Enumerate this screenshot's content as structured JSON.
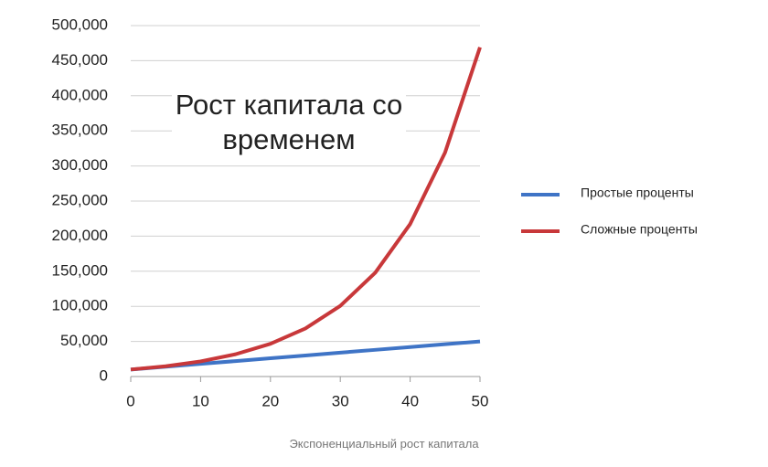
{
  "chart_data": {
    "type": "line",
    "title": "Рост капитала со временем",
    "caption": "Экспоненциальный рост капитала",
    "x": [
      0,
      5,
      10,
      15,
      20,
      25,
      30,
      35,
      40,
      45,
      50
    ],
    "series": [
      {
        "name": "Простые проценты",
        "color": "#3f74c6",
        "values": [
          10000,
          14000,
          18000,
          22000,
          26000,
          30000,
          34000,
          38000,
          42000,
          46000,
          50000
        ]
      },
      {
        "name": "Сложные проценты",
        "color": "#c8383a",
        "values": [
          10000,
          14693,
          21589,
          31722,
          46610,
          68485,
          100627,
          147853,
          217245,
          319204,
          469016
        ]
      }
    ],
    "xlim": [
      0,
      50
    ],
    "xticks": [
      0,
      10,
      20,
      30,
      40,
      50
    ],
    "ylim": [
      0,
      500000
    ],
    "yticks": [
      0,
      {
        "value": 50000,
        "label": "50,000"
      },
      {
        "value": 100000,
        "label": "100,000"
      },
      {
        "value": 150000,
        "label": "150,000"
      },
      {
        "value": 200000,
        "label": "200,000"
      },
      {
        "value": 250000,
        "label": "250,000"
      },
      {
        "value": 300000,
        "label": "300,000"
      },
      {
        "value": 350000,
        "label": "350,000"
      },
      {
        "value": 400000,
        "label": "400,000"
      },
      {
        "value": 450000,
        "label": "450,000"
      },
      {
        "value": 500000,
        "label": "500,000"
      }
    ],
    "grid": true,
    "legend": "right"
  }
}
